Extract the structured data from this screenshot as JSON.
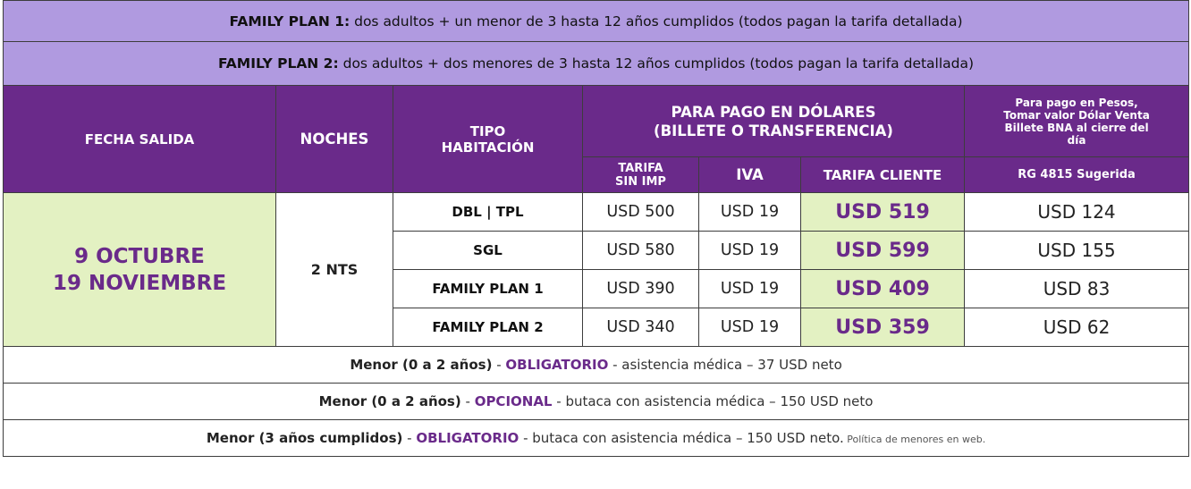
{
  "plans": [
    {
      "label": "FAMILY PLAN 1:",
      "text": " dos adultos + un menor de 3 hasta 12 años cumplidos (todos pagan la tarifa detallada)"
    },
    {
      "label": "FAMILY PLAN 2:",
      "text": " dos adultos + dos menores de 3 hasta 12 años cumplidos (todos pagan la tarifa detallada)"
    }
  ],
  "headers": {
    "fecha_salida": "FECHA SALIDA",
    "noches": "NOCHES",
    "tipo_line1": "TIPO",
    "tipo_line2": "HABITACIÓN",
    "dolares_line1": "PARA PAGO EN DÓLARES",
    "dolares_line2": "(BILLETE O TRANSFERENCIA)",
    "pesos_line1": "Para pago en Pesos,",
    "pesos_line2": "Tomar valor Dólar Venta",
    "pesos_line3": "Billete BNA al cierre del",
    "pesos_line4": "día",
    "tarifa_line1": "TARIFA",
    "tarifa_line2": "SIN IMP",
    "iva": "IVA",
    "tarifa_cliente": "TARIFA CLIENTE",
    "rg": "RG 4815 Sugerida"
  },
  "dates": {
    "line1": "9 OCTUBRE",
    "line2": "19 NOVIEMBRE"
  },
  "nights": "2 NTS",
  "rows": [
    {
      "room": "DBL | TPL",
      "tarifa": "USD 500",
      "iva": "USD 19",
      "cliente": "USD 519",
      "pesos": "USD 124"
    },
    {
      "room": "SGL",
      "tarifa": "USD 580",
      "iva": "USD 19",
      "cliente": "USD 599",
      "pesos": "USD 155"
    },
    {
      "room": "FAMILY PLAN 1",
      "tarifa": "USD 390",
      "iva": "USD 19",
      "cliente": "USD 409",
      "pesos": "USD 83"
    },
    {
      "room": "FAMILY PLAN 2",
      "tarifa": "USD 340",
      "iva": "USD 19",
      "cliente": "USD 359",
      "pesos": "USD 62"
    }
  ],
  "notes": [
    {
      "bold": "Menor (0 a 2 años)",
      "sep1": " - ",
      "accent": "OBLIGATORIO",
      "rest": " - asistencia médica – 37 USD neto",
      "small": ""
    },
    {
      "bold": "Menor (0 a 2 años)",
      "sep1": " - ",
      "accent": "OPCIONAL",
      "rest": " - butaca con asistencia médica – 150 USD neto",
      "small": ""
    },
    {
      "bold": "Menor (3 años cumplidos)",
      "sep1": " - ",
      "accent": "OBLIGATORIO",
      "rest": " - butaca con asistencia médica – 150 USD neto.",
      "small": " Política de menores en web."
    }
  ],
  "colors": {
    "purple": "#6a2a8a",
    "lavender": "#b09ae0",
    "green": "#e3f1c2"
  }
}
